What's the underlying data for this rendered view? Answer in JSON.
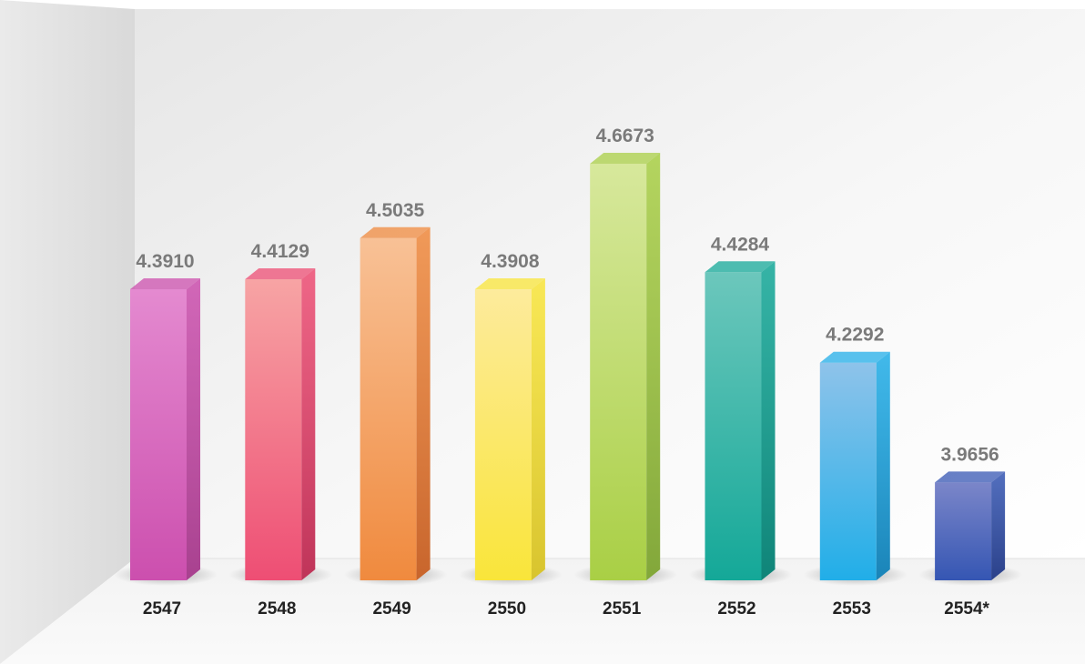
{
  "chart_data": {
    "type": "bar",
    "title": "",
    "xlabel": "",
    "ylabel": "",
    "categories": [
      "2547",
      "2548",
      "2549",
      "2550",
      "2551",
      "2552",
      "2553",
      "2554*"
    ],
    "values": [
      4.391,
      4.4129,
      4.5035,
      4.3908,
      4.6673,
      4.4284,
      4.2292,
      3.9656
    ],
    "value_labels": [
      "4.3910",
      "4.4129",
      "4.5035",
      "4.3908",
      "4.6673",
      "4.4284",
      "4.2292",
      "3.9656"
    ],
    "ylim": [
      3.75,
      4.75
    ],
    "grid": false,
    "legend": "none",
    "style": "3d-gradient-bars",
    "colors": [
      {
        "light": "#e48ad0",
        "base": "#cc4fae",
        "dark": "#a8418f"
      },
      {
        "light": "#f7a4a4",
        "base": "#ee4e74",
        "dark": "#bf3459"
      },
      {
        "light": "#f8c196",
        "base": "#f08a3e",
        "dark": "#c8652c"
      },
      {
        "light": "#fdeb9c",
        "base": "#f9e53a",
        "dark": "#d8c42e"
      },
      {
        "light": "#d7e89c",
        "base": "#a9cf45",
        "dark": "#82a73a"
      },
      {
        "light": "#6cc7bc",
        "base": "#14a898",
        "dark": "#0f8478"
      },
      {
        "light": "#8ec3ea",
        "base": "#21aee8",
        "dark": "#1a84b8"
      },
      {
        "light": "#7b86c9",
        "base": "#3556b3",
        "dark": "#2b418a"
      }
    ]
  }
}
